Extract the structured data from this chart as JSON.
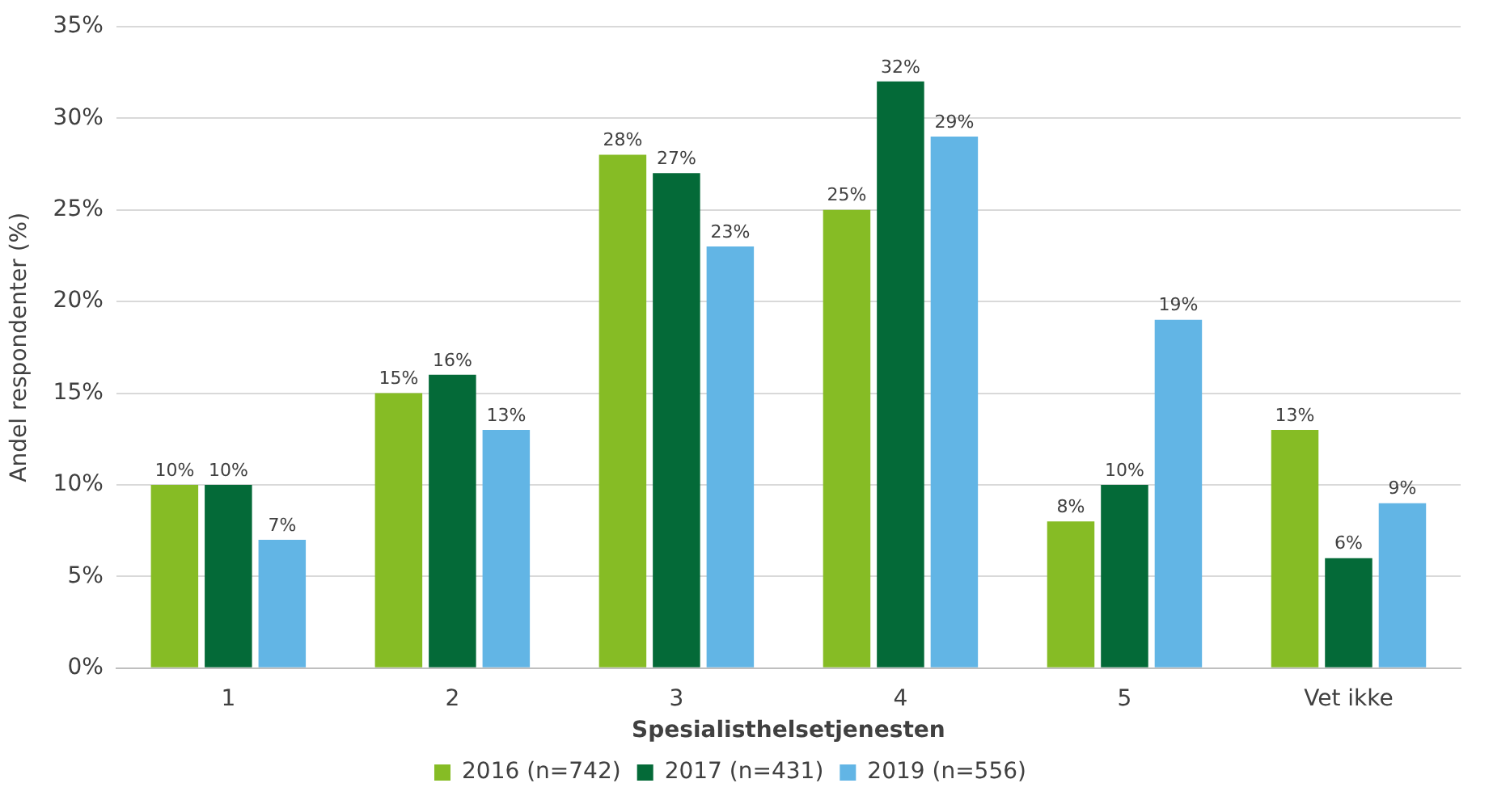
{
  "chart_data": {
    "type": "bar",
    "xlabel": "Spesialisthelsetjenesten",
    "ylabel": "Andel respondenter (%)",
    "categories": [
      "1",
      "2",
      "3",
      "4",
      "5",
      "Vet ikke"
    ],
    "series": [
      {
        "name": "2016 (n=742)",
        "color": "#86bc25",
        "values": [
          10,
          15,
          28,
          25,
          8,
          13
        ],
        "value_labels": [
          "10%",
          "15%",
          "28%",
          "25%",
          "8%",
          "13%"
        ]
      },
      {
        "name": "2017 (n=431)",
        "color": "#046a38",
        "values": [
          10,
          16,
          27,
          32,
          10,
          6
        ],
        "value_labels": [
          "10%",
          "16%",
          "27%",
          "32%",
          "10%",
          "6%"
        ]
      },
      {
        "name": "2019 (n=556)",
        "color": "#62b5e5",
        "values": [
          7,
          13,
          23,
          29,
          19,
          9
        ],
        "value_labels": [
          "7%",
          "13%",
          "23%",
          "29%",
          "19%",
          "9%"
        ]
      }
    ],
    "ylim": [
      0,
      35
    ],
    "yticks": [
      {
        "value": 0,
        "label": "0%"
      },
      {
        "value": 5,
        "label": "5%"
      },
      {
        "value": 10,
        "label": "10%"
      },
      {
        "value": 15,
        "label": "15%"
      },
      {
        "value": 20,
        "label": "20%"
      },
      {
        "value": 25,
        "label": "25%"
      },
      {
        "value": 30,
        "label": "30%"
      },
      {
        "value": 35,
        "label": "35%"
      }
    ],
    "grid": "y",
    "legend": "bottom"
  }
}
